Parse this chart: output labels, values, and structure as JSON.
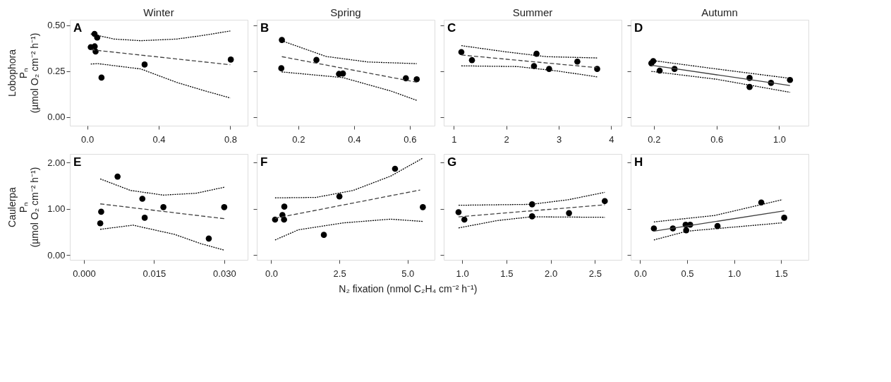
{
  "chart_data": [
    {
      "type": "scatter",
      "title": "Winter",
      "ylabel": "Lobophora\nPₙ\n(µmol O₂ cm⁻² h⁻¹)",
      "annotations": [
        "A"
      ],
      "xlim": [
        -0.097,
        0.897
      ],
      "ylim": [
        -0.047,
        0.53
      ],
      "xticks": [
        {
          "value": 0,
          "label": "0.0"
        },
        0.4,
        0.8
      ],
      "yticks": [
        {
          "value": 0,
          "label": "0.00"
        },
        0.25,
        {
          "value": 0.5,
          "label": "0.50"
        }
      ],
      "grid": false,
      "series": [
        {
          "marker": "circle",
          "color": "#000000",
          "x": [
            0.041,
            0.056,
            0.02,
            0.042,
            0.047,
            0.08,
            0.321,
            0.803
          ],
          "values": [
            0.453,
            0.433,
            0.381,
            0.385,
            0.357,
            0.215,
            0.286,
            0.313
          ]
        },
        {
          "type": "line",
          "color": "#404040",
          "line_style": "dashed",
          "x": [
            0.02,
            0.8
          ],
          "values": [
            0.367,
            0.285
          ]
        },
        {
          "type": "line",
          "color": "#000000",
          "line_style": "dotted",
          "x": [
            0.02,
            0.15,
            0.3,
            0.5,
            0.65,
            0.8
          ],
          "values": [
            0.453,
            0.425,
            0.416,
            0.425,
            0.445,
            0.469
          ]
        },
        {
          "type": "line",
          "color": "#000000",
          "line_style": "dotted",
          "x": [
            0.02,
            0.06,
            0.3,
            0.5,
            0.65,
            0.8
          ],
          "values": [
            0.289,
            0.291,
            0.262,
            0.189,
            0.145,
            0.104
          ]
        }
      ]
    },
    {
      "type": "scatter",
      "title": "Spring",
      "tick_labels": "x",
      "annotations": [
        "B"
      ],
      "xlim": [
        0.051,
        0.689
      ],
      "ylim": [
        -0.047,
        0.53
      ],
      "xticks": [
        0.2,
        0.4,
        0.6
      ],
      "yticks": [
        0,
        0.25,
        0.5
      ],
      "grid": false,
      "series": [
        {
          "marker": "circle",
          "color": "#000000",
          "x": [
            0.141,
            0.139,
            0.265,
            0.346,
            0.36,
            0.586,
            0.625
          ],
          "values": [
            0.42,
            0.266,
            0.311,
            0.235,
            0.237,
            0.211,
            0.206
          ]
        },
        {
          "type": "line",
          "color": "#404040",
          "line_style": "dashed",
          "x": [
            0.141,
            0.625
          ],
          "values": [
            0.329,
            0.19
          ]
        },
        {
          "type": "line",
          "color": "#000000",
          "line_style": "dotted",
          "x": [
            0.14,
            0.3,
            0.45,
            0.625
          ],
          "values": [
            0.416,
            0.33,
            0.3,
            0.291
          ]
        },
        {
          "type": "line",
          "color": "#000000",
          "line_style": "dotted",
          "x": [
            0.14,
            0.36,
            0.532,
            0.625
          ],
          "values": [
            0.246,
            0.215,
            0.142,
            0.091
          ]
        }
      ]
    },
    {
      "type": "scatter",
      "title": "Summer",
      "tick_labels": "x",
      "annotations": [
        "C"
      ],
      "xlim": [
        0.808,
        4.197
      ],
      "ylim": [
        -0.047,
        0.53
      ],
      "xticks": [
        1,
        2,
        3,
        4
      ],
      "yticks": [
        0,
        0.25,
        0.5
      ],
      "grid": false,
      "series": [
        {
          "marker": "circle",
          "color": "#000000",
          "x": [
            1.144,
            1.346,
            2.577,
            2.529,
            2.817,
            3.355,
            3.733
          ],
          "values": [
            0.354,
            0.31,
            0.345,
            0.278,
            0.262,
            0.302,
            0.262
          ]
        },
        {
          "type": "line",
          "color": "#404040",
          "line_style": "dashed",
          "x": [
            1.144,
            3.733
          ],
          "values": [
            0.338,
            0.269
          ]
        },
        {
          "type": "line",
          "color": "#000000",
          "line_style": "dotted",
          "x": [
            1.144,
            2.0,
            2.76,
            3.733
          ],
          "values": [
            0.389,
            0.355,
            0.329,
            0.322
          ]
        },
        {
          "type": "line",
          "color": "#000000",
          "line_style": "dotted",
          "x": [
            1.144,
            2.22,
            3.0,
            3.733
          ],
          "values": [
            0.279,
            0.275,
            0.25,
            0.219
          ]
        }
      ]
    },
    {
      "type": "scatter",
      "title": "Autumn",
      "tick_labels": "x",
      "annotations": [
        "D"
      ],
      "xlim": [
        0.052,
        1.187
      ],
      "ylim": [
        -0.047,
        0.53
      ],
      "xticks": [
        0.2,
        0.6,
        {
          "value": 1.0,
          "label": "1.0"
        }
      ],
      "yticks": [
        0,
        0.25,
        0.5
      ],
      "grid": false,
      "series": [
        {
          "marker": "circle",
          "color": "#000000",
          "x": [
            0.184,
            0.196,
            0.237,
            0.332,
            0.811,
            0.811,
            0.948,
            1.069
          ],
          "values": [
            0.293,
            0.305,
            0.253,
            0.262,
            0.213,
            0.164,
            0.186,
            0.202
          ]
        },
        {
          "type": "line",
          "color": "#404040",
          "line_style": "solid",
          "x": [
            0.184,
            1.069
          ],
          "values": [
            0.282,
            0.172
          ]
        },
        {
          "type": "line",
          "color": "#000000",
          "line_style": "dotted",
          "x": [
            0.184,
            0.6,
            1.069
          ],
          "values": [
            0.309,
            0.262,
            0.211
          ]
        },
        {
          "type": "line",
          "color": "#000000",
          "line_style": "dotted",
          "x": [
            0.184,
            0.6,
            1.069
          ],
          "values": [
            0.249,
            0.206,
            0.135
          ]
        }
      ]
    },
    {
      "type": "scatter",
      "ylabel": "Caulerpa\nPₙ\n(µmol O₂ cm⁻² h⁻¹)",
      "annotations": [
        "E"
      ],
      "xlim": [
        -0.003,
        0.035
      ],
      "ylim": [
        -0.1,
        2.19
      ],
      "xticks": [
        {
          "value": 0,
          "label": "0.000"
        },
        0.015,
        {
          "value": 0.03,
          "label": "0.030"
        }
      ],
      "yticks": [
        {
          "value": 0,
          "label": "0.00"
        },
        {
          "value": 1,
          "label": "1.00"
        },
        {
          "value": 2,
          "label": "2.00"
        }
      ],
      "grid": false,
      "series": [
        {
          "marker": "circle",
          "color": "#000000",
          "x": [
            0.0035,
            0.0037,
            0.0072,
            0.0125,
            0.013,
            0.017,
            0.0267,
            0.03
          ],
          "values": [
            0.69,
            0.94,
            1.7,
            1.22,
            0.81,
            1.04,
            0.36,
            1.04
          ]
        },
        {
          "type": "line",
          "color": "#404040",
          "line_style": "dashed",
          "x": [
            0.0035,
            0.03
          ],
          "values": [
            1.11,
            0.79
          ]
        },
        {
          "type": "line",
          "color": "#000000",
          "line_style": "dotted",
          "x": [
            0.0035,
            0.01,
            0.017,
            0.024,
            0.03
          ],
          "values": [
            1.65,
            1.4,
            1.3,
            1.34,
            1.47
          ]
        },
        {
          "type": "line",
          "color": "#000000",
          "line_style": "dotted",
          "x": [
            0.0035,
            0.0105,
            0.0194,
            0.025,
            0.03
          ],
          "values": [
            0.56,
            0.65,
            0.45,
            0.25,
            0.11
          ]
        }
      ]
    },
    {
      "type": "scatter",
      "tick_labels": "x",
      "xlabel": "N₂ fixation (nmol C₂H₄ cm⁻² h⁻¹)",
      "annotations": [
        "F"
      ],
      "xlim": [
        -0.53,
        5.99
      ],
      "ylim": [
        -0.1,
        2.19
      ],
      "xticks": [
        {
          "value": 0,
          "label": "0.0"
        },
        2.5,
        {
          "value": 5,
          "label": "5.0"
        }
      ],
      "yticks": [
        0,
        1,
        2
      ],
      "grid": false,
      "series": [
        {
          "marker": "circle",
          "color": "#000000",
          "x": [
            0.14,
            0.41,
            0.47,
            0.48,
            1.93,
            2.5,
            4.54,
            5.56
          ],
          "values": [
            0.77,
            0.87,
            0.77,
            1.05,
            0.44,
            1.27,
            1.87,
            1.04
          ]
        },
        {
          "type": "line",
          "color": "#404040",
          "line_style": "dashed",
          "x": [
            0.14,
            5.46
          ],
          "values": [
            0.8,
            1.41
          ]
        },
        {
          "type": "line",
          "color": "#000000",
          "line_style": "dotted",
          "x": [
            0.14,
            1.64,
            3.0,
            4.38,
            5.56
          ],
          "values": [
            1.24,
            1.25,
            1.4,
            1.71,
            2.1
          ]
        },
        {
          "type": "line",
          "color": "#000000",
          "line_style": "dotted",
          "x": [
            0.14,
            1.0,
            2.66,
            4.38,
            5.56
          ],
          "values": [
            0.33,
            0.55,
            0.7,
            0.78,
            0.73
          ]
        }
      ]
    },
    {
      "type": "scatter",
      "tick_labels": "x",
      "annotations": [
        "G"
      ],
      "xlim": [
        0.792,
        2.8
      ],
      "ylim": [
        -0.1,
        2.19
      ],
      "xticks": [
        {
          "value": 1,
          "label": "1.0"
        },
        1.5,
        {
          "value": 2,
          "label": "2.0"
        },
        2.5
      ],
      "yticks": [
        0,
        1,
        2
      ],
      "grid": false,
      "series": [
        {
          "marker": "circle",
          "color": "#000000",
          "x": [
            0.959,
            1.025,
            1.79,
            1.79,
            2.207,
            2.611
          ],
          "values": [
            0.93,
            0.77,
            1.1,
            0.84,
            0.91,
            1.17
          ]
        },
        {
          "type": "line",
          "color": "#404040",
          "line_style": "dashed",
          "x": [
            0.959,
            2.611
          ],
          "values": [
            0.83,
            1.09
          ]
        },
        {
          "type": "line",
          "color": "#000000",
          "line_style": "dotted",
          "x": [
            0.959,
            1.78,
            2.2,
            2.611
          ],
          "values": [
            1.08,
            1.1,
            1.2,
            1.36
          ]
        },
        {
          "type": "line",
          "color": "#000000",
          "line_style": "dotted",
          "x": [
            0.959,
            1.4,
            1.78,
            2.611
          ],
          "values": [
            0.59,
            0.75,
            0.83,
            0.82
          ]
        }
      ]
    },
    {
      "type": "scatter",
      "tick_labels": "x",
      "annotations": [
        "H"
      ],
      "xlim": [
        -0.101,
        1.791
      ],
      "ylim": [
        -0.1,
        2.19
      ],
      "xticks": [
        {
          "value": 0,
          "label": "0.0"
        },
        0.5,
        {
          "value": 1,
          "label": "1.0"
        },
        1.5
      ],
      "yticks": [
        0,
        1,
        2
      ],
      "grid": false,
      "series": [
        {
          "marker": "circle",
          "color": "#000000",
          "x": [
            0.146,
            0.348,
            0.484,
            0.532,
            0.49,
            0.823,
            1.289,
            1.533
          ],
          "values": [
            0.58,
            0.58,
            0.66,
            0.66,
            0.54,
            0.63,
            1.14,
            0.81
          ]
        },
        {
          "type": "line",
          "color": "#404040",
          "line_style": "solid",
          "x": [
            0.146,
            1.533
          ],
          "values": [
            0.52,
            0.96
          ]
        },
        {
          "type": "line",
          "color": "#000000",
          "line_style": "dotted",
          "x": [
            0.146,
            0.796,
            1.512
          ],
          "values": [
            0.72,
            0.86,
            1.2
          ]
        },
        {
          "type": "line",
          "color": "#000000",
          "line_style": "dotted",
          "x": [
            0.146,
            0.499,
            1.512
          ],
          "values": [
            0.33,
            0.52,
            0.7
          ]
        }
      ]
    }
  ]
}
